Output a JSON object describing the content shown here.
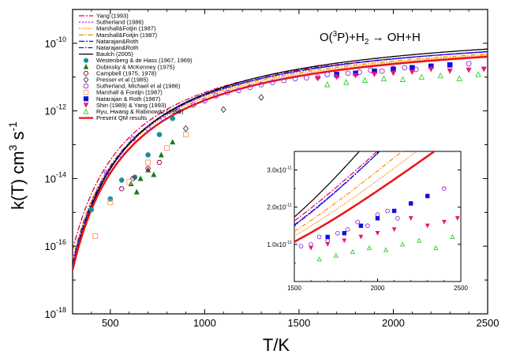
{
  "chart_data": {
    "type": "scatter",
    "reaction": {
      "prefix": "O(",
      "sup": "3",
      "suffix": "P)+H",
      "sub": "2",
      "tail": " → OH+H"
    },
    "xlabel": "T/K",
    "ylabel": {
      "prefix": "k(T) cm",
      "sup1": "3",
      "mid": " s",
      "sup2": "-1"
    },
    "xlim": [
      300,
      2500
    ],
    "ylim_log10": [
      -18,
      -9
    ],
    "x_ticks": [
      "500",
      "1000",
      "1500",
      "2000",
      "2500"
    ],
    "y_tick_exponents": [
      "-18",
      "-16",
      "-14",
      "-12",
      "-10"
    ],
    "legend_placement": "top-left",
    "curves": [
      {
        "name": "Yang (1993)",
        "color": "#e0004c",
        "dash": "7,2,2,2",
        "A": 3.5e-10,
        "Ea": 4600
      },
      {
        "name": "Sutherland (1986)",
        "color": "#a020f0",
        "dash": "2,2",
        "A": 4.2e-10,
        "Ea": 5000
      },
      {
        "name": "Marshall&Fotjin (1987)",
        "color": "#ff8c00",
        "dash": "1.5,1.5",
        "A": 3e-10,
        "Ea": 4800
      },
      {
        "name": "Marshall&Foitjin (1987)",
        "color": "#ff8c00",
        "dash": "6,2,1.5,2",
        "A": 3.2e-10,
        "Ea": 4750
      },
      {
        "name": "Natarajan&Roth",
        "color": "#1010e0",
        "dash": "7,2,2,2",
        "A": 4e-10,
        "Ea": 4900
      },
      {
        "name": "Natarajan&Roth",
        "color": "#1010e0",
        "dash": "6,2,1.5,2",
        "A": 4.1e-10,
        "Ea": 4950
      },
      {
        "name": "Baulch (2005)",
        "color": "#000000",
        "dash": "",
        "A": 5.2e-10,
        "Ea": 5100
      },
      {
        "name": "Present QM results",
        "color": "#ee1111",
        "dash": "",
        "A": 2.9e-10,
        "Ea": 4950,
        "width": 2.5
      }
    ],
    "series": [
      {
        "name": "Westenberg & de Hass (1967, 1969)",
        "marker": "circle-filled",
        "color": "#1a9090",
        "x": [
          400,
          500,
          560,
          630,
          700,
          760,
          830
        ],
        "y": [
          1.2e-15,
          2.5e-15,
          9e-15,
          1.1e-14,
          5e-14,
          2e-13,
          6e-13
        ]
      },
      {
        "name": "Dubinsky & McKenney (1975)",
        "marker": "triangle-filled",
        "color": "#1a7a1a",
        "x": [
          610,
          640,
          660,
          700,
          730,
          770,
          830
        ],
        "y": [
          7e-15,
          4e-15,
          1e-14,
          1.8e-14,
          1.3e-14,
          5e-14,
          1.2e-13
        ]
      },
      {
        "name": "Campbell (1975, 1978)",
        "marker": "hexagon-open",
        "color": "#a0004c",
        "x": [
          560,
          620,
          700,
          760
        ],
        "y": [
          5e-15,
          1e-14,
          2e-14,
          3e-14
        ]
      },
      {
        "name": "Presser et al (1985)",
        "marker": "diamond-open",
        "color": "#333333",
        "x": [
          900,
          1100,
          1300
        ],
        "y": [
          3e-13,
          1.1e-12,
          2.5e-12
        ]
      },
      {
        "name": "Sutherland, Michael et al (1986)",
        "marker": "circle-open",
        "color": "#8a2be2",
        "x": [
          480,
          560,
          620,
          700,
          780,
          860,
          940,
          1000,
          1060,
          1120,
          1180,
          1240,
          1300,
          1360,
          1420,
          1480,
          1540,
          1600,
          1650,
          1700,
          1760,
          1820,
          1880,
          1940,
          2000,
          2060,
          2120,
          2200,
          2300,
          2400
        ],
        "y": [
          1.5e-14,
          5e-14,
          1.5e-13,
          3e-13,
          6e-13,
          1e-12,
          1.5e-12,
          2e-12,
          2.8e-12,
          3.5e-12,
          4e-12,
          5e-12,
          6e-12,
          7e-12,
          8e-12,
          9e-12,
          9.5e-12,
          1e-11,
          1.2e-11,
          1.1e-11,
          1.3e-11,
          1.4e-11,
          1.6e-11,
          1.5e-11,
          1.8e-11,
          1.9e-11,
          1.7e-11,
          2.1e-11,
          2.3e-11,
          2.5e-11
        ]
      },
      {
        "name": "Marshall & Fontijn (1987)",
        "marker": "square-open",
        "color": "#ff9966",
        "x": [
          420,
          500,
          600,
          700,
          800,
          900
        ],
        "y": [
          2e-16,
          2e-15,
          8e-15,
          3e-14,
          8e-14,
          2e-13
        ]
      },
      {
        "name": "Natarajan & Roth (1987)",
        "marker": "square-filled",
        "color": "#1010e0",
        "x": [
          1700,
          1800,
          1900,
          2000,
          2100,
          2200,
          2300
        ],
        "y": [
          1.2e-11,
          1.3e-11,
          1.5e-11,
          1.7e-11,
          1.9e-11,
          2.1e-11,
          2.3e-11
        ]
      },
      {
        "name": "Shin (1989) & Yang (1993)",
        "marker": "triangle-down-filled",
        "color": "#ee1177",
        "x": [
          1600,
          1700,
          1800,
          1900,
          2000,
          2100,
          2200,
          2300,
          2400,
          2480
        ],
        "y": [
          9e-12,
          1e-11,
          1.1e-11,
          1.2e-11,
          1.3e-11,
          1.4e-11,
          1.7e-11,
          1.5e-11,
          1.6e-11,
          1.7e-11
        ]
      },
      {
        "name": "Ryu, Hwang & Rabinowitz (1995)",
        "marker": "triangle-open",
        "color": "#33cc33",
        "x": [
          1650,
          1750,
          1850,
          1950,
          2050,
          2150,
          2250,
          2350,
          2450
        ],
        "y": [
          6e-12,
          7e-12,
          8e-12,
          9e-12,
          8.5e-12,
          1e-11,
          1.1e-11,
          9e-12,
          1.2e-11
        ]
      }
    ],
    "inset": {
      "xlim": [
        1500,
        2500
      ],
      "ylim": [
        0,
        3.5e-11
      ],
      "x_ticks": [
        "1500",
        "2000",
        "2500"
      ],
      "y_ticks": [
        {
          "m": "1.0x10",
          "e": "-11"
        },
        {
          "m": "2.0x10",
          "e": "-11"
        },
        {
          "m": "3.0x10",
          "e": "-11"
        }
      ]
    }
  }
}
